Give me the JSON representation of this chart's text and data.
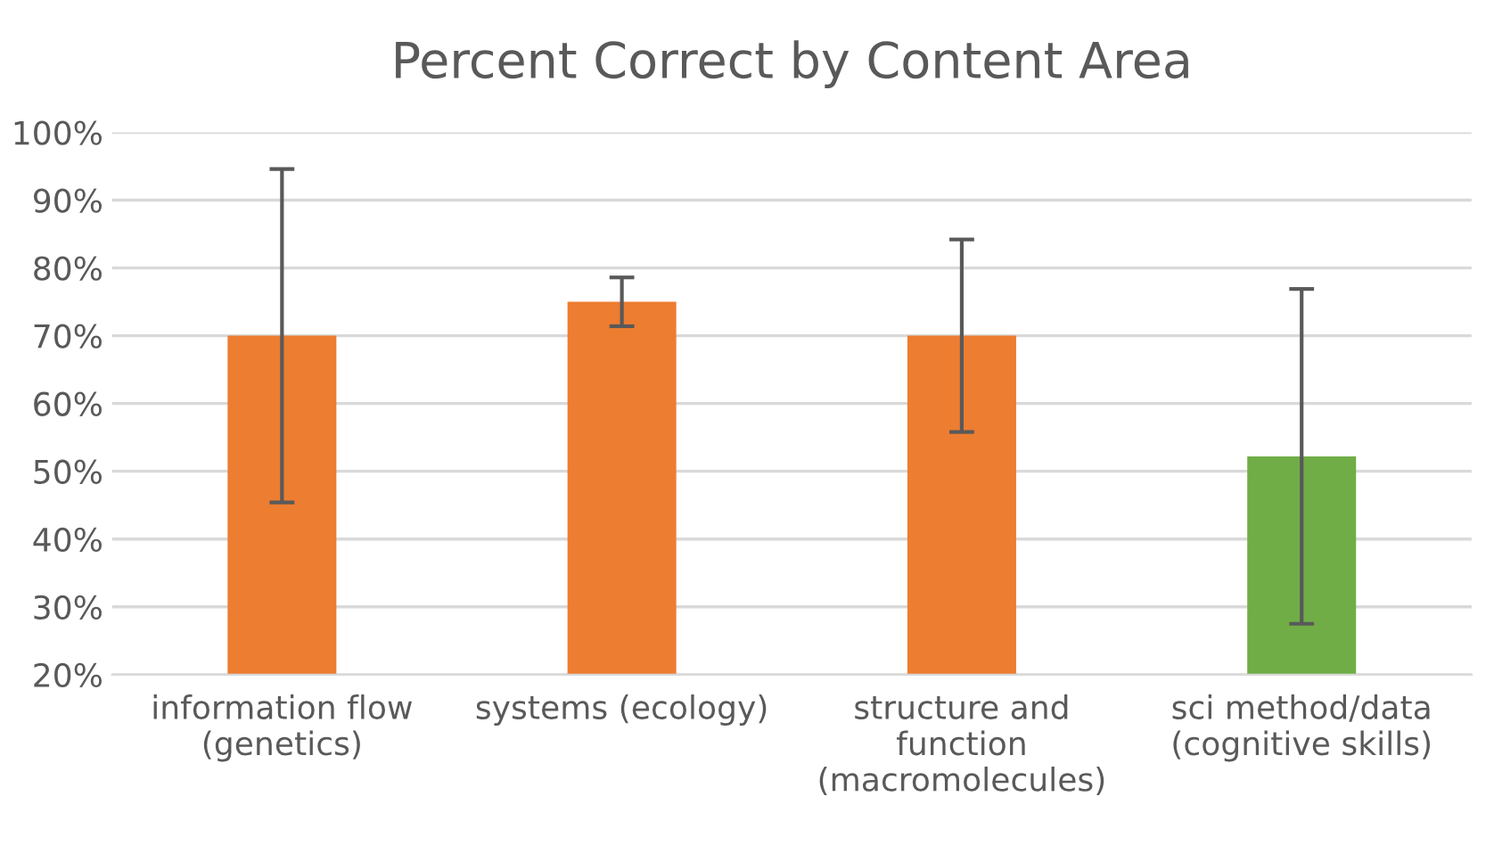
{
  "chart_data": {
    "type": "bar",
    "title": "Percent Correct by Content Area",
    "categories": [
      "information flow\n(genetics)",
      "systems (ecology)",
      "structure and\nfunction\n(macromolecules)",
      "sci method/data\n(cognitive skills)"
    ],
    "values": [
      70,
      75,
      70,
      52.2
    ],
    "errors": [
      24.6,
      3.6,
      14.2,
      24.7
    ],
    "colors": [
      "#ed7d31",
      "#ed7d31",
      "#ed7d31",
      "#70ad47"
    ],
    "ylim": [
      20,
      100
    ],
    "yticks": [
      {
        "value": 20,
        "label": "20%"
      },
      {
        "value": 30,
        "label": "30%"
      },
      {
        "value": 40,
        "label": "40%"
      },
      {
        "value": 50,
        "label": "50%"
      },
      {
        "value": 60,
        "label": "60%"
      },
      {
        "value": 70,
        "label": "70%"
      },
      {
        "value": 80,
        "label": "80%"
      },
      {
        "value": 90,
        "label": "90%"
      },
      {
        "value": 100,
        "label": "100%"
      }
    ],
    "grid": "y",
    "legend": false
  }
}
